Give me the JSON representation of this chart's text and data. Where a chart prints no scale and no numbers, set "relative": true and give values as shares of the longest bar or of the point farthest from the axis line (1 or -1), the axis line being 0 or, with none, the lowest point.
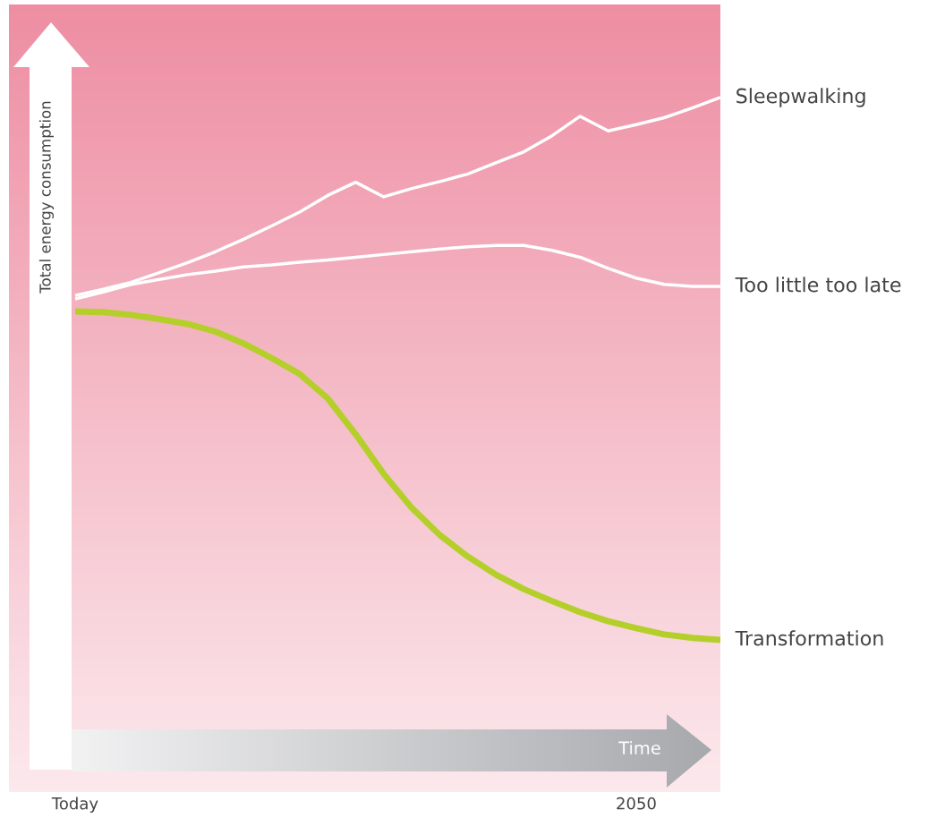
{
  "chart_data": {
    "type": "line",
    "relative": true,
    "ylabel": "Total energy consumption",
    "xlabel": "Time",
    "categories": [
      "Today",
      null,
      null,
      null,
      null,
      null,
      null,
      null,
      null,
      null,
      null,
      null,
      null,
      null,
      null,
      null,
      null,
      null,
      null,
      null,
      "2050",
      null,
      null,
      null
    ],
    "grid": false,
    "legend": false,
    "marker": "none",
    "line_style": "solid",
    "series": [
      {
        "name": "Sleepwalking",
        "color": "#ffffff",
        "values": [
          0.715,
          0.724,
          0.734,
          0.748,
          0.762,
          0.778,
          0.796,
          0.815,
          0.835,
          0.859,
          0.878,
          0.857,
          0.869,
          0.879,
          0.89,
          0.906,
          0.922,
          0.945,
          0.973,
          0.952,
          0.961,
          0.971,
          0.985,
          1
        ]
      },
      {
        "name": "Too little too late",
        "color": "#ffffff",
        "values": [
          0.71,
          0.72,
          0.731,
          0.738,
          0.745,
          0.75,
          0.756,
          0.759,
          0.763,
          0.766,
          0.77,
          0.774,
          0.778,
          0.782,
          0.785,
          0.787,
          0.787,
          0.78,
          0.77,
          0.754,
          0.74,
          0.731,
          0.728,
          0.728
        ]
      },
      {
        "name": "Transformation",
        "color": "#b5cf2a",
        "values": [
          0.692,
          0.691,
          0.687,
          0.681,
          0.674,
          0.663,
          0.646,
          0.625,
          0.602,
          0.567,
          0.515,
          0.458,
          0.409,
          0.37,
          0.339,
          0.313,
          0.292,
          0.275,
          0.259,
          0.246,
          0.236,
          0.227,
          0.222,
          0.219
        ]
      }
    ]
  }
}
